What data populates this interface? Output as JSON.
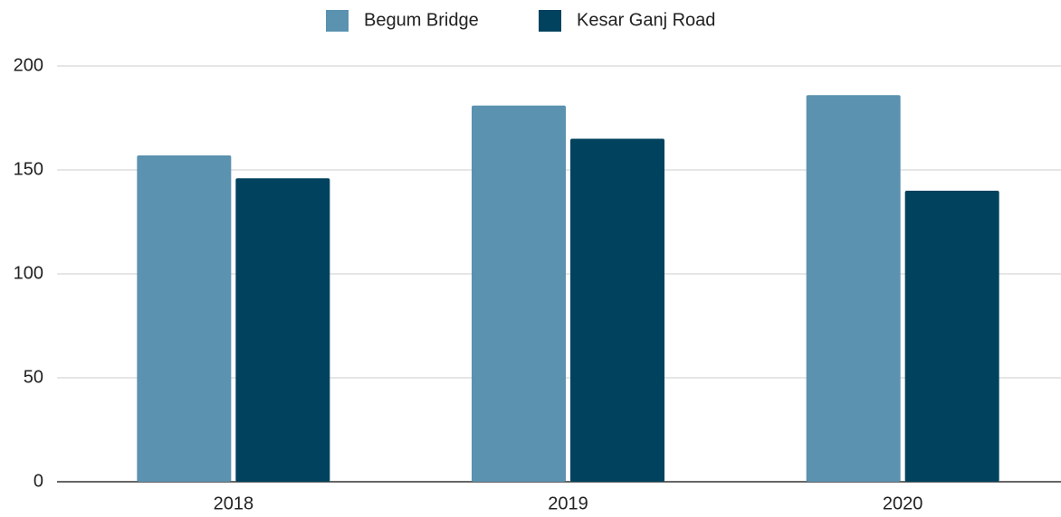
{
  "chart_data": {
    "type": "bar",
    "categories": [
      "2018",
      "2019",
      "2020"
    ],
    "series": [
      {
        "name": "Begum Bridge",
        "color": "#5b92b0",
        "values": [
          157,
          181,
          186
        ]
      },
      {
        "name": "Kesar Ganj Road",
        "color": "#01425e",
        "values": [
          146,
          165,
          140
        ]
      }
    ],
    "ylim": [
      0,
      200
    ],
    "yticks": [
      0,
      50,
      100,
      150,
      200
    ],
    "grid": true,
    "legend": "top"
  }
}
